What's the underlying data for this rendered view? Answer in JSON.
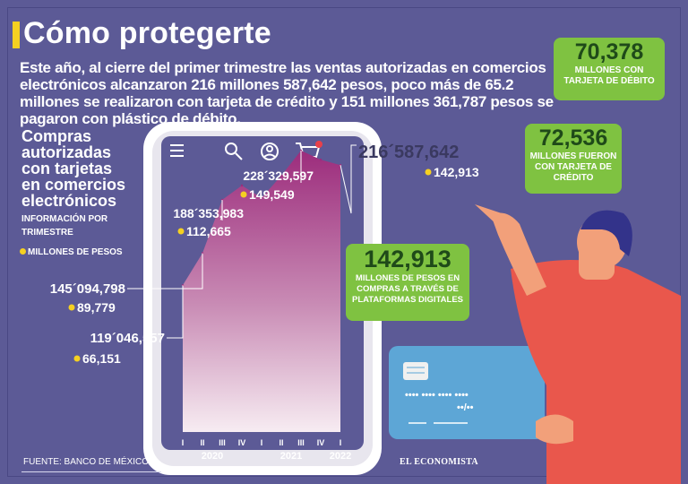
{
  "header": {
    "title": "Cómo protegerte",
    "intro": "Este año, al cierre del primer trimestre las ventas autorizadas en comercios electrónicos alcanzaron 216 millones 587,642 pesos, poco más de 65.2 millones se realizaron con tarjeta de crédito y 151 millones 361,787 pesos se pagaron con plástico de débito."
  },
  "side": {
    "title": "Compras autorizadas con tarjetas en comercios electrónicos",
    "subtitle": "INFORMACIÓN POR TRIMESTRE",
    "legend": "MILLONES DE PESOS"
  },
  "bubbles": {
    "debit": {
      "value": "70,378",
      "text": "MILLONES CON TARJETA DE DÉBITO"
    },
    "credit": {
      "value": "72,536",
      "text": "MILLONES FUERON CON TARJETA DE CRÉDITO"
    },
    "platforms": {
      "value": "142,913",
      "text": "MILLONES DE PESOS EN COMPRAS A TRAVÉS DE PLATAFORMAS DIGITALES"
    }
  },
  "footer": {
    "source": "FUENTE: BANCO DE MÉXICO.",
    "logo": "EL ECONOMISTA"
  },
  "card": {
    "dots": "••••  ••••  ••••  ••••",
    "expiry": "••/••"
  },
  "colors": {
    "background": "#5c5a96",
    "accent": "#f5d021",
    "bubble": "#7fc241",
    "area_top": "#9c2c7c",
    "area_bottom": "#f5e8f0"
  },
  "chart_data": {
    "type": "area",
    "x": [
      "2020-I",
      "2020-II",
      "2020-III",
      "2020-IV",
      "2021-I",
      "2021-II",
      "2021-III",
      "2021-IV",
      "2022-I"
    ],
    "tick_labels": [
      "I",
      "II",
      "III",
      "IV",
      "I",
      "II",
      "III",
      "IV",
      "I"
    ],
    "year_labels": [
      {
        "label": "2020",
        "from": 0,
        "to": 3
      },
      {
        "label": "2021",
        "from": 4,
        "to": 7
      },
      {
        "label": "2022",
        "from": 8,
        "to": 8
      }
    ],
    "values": [
      119046557,
      145094798,
      188353983,
      200000000,
      190000000,
      208000000,
      228329597,
      221000000,
      216587642
    ],
    "annotations": [
      {
        "index": 0,
        "total": "119´046,557",
        "platforms": "66,151"
      },
      {
        "index": 1,
        "total": "145´094,798",
        "platforms": "89,779"
      },
      {
        "index": 2,
        "total": "188´353,983",
        "platforms": "112,665"
      },
      {
        "index": 6,
        "total": "228´329,597",
        "platforms": "149,549"
      },
      {
        "index": 8,
        "total": "216´587,642",
        "platforms": "142,913"
      }
    ]
  }
}
